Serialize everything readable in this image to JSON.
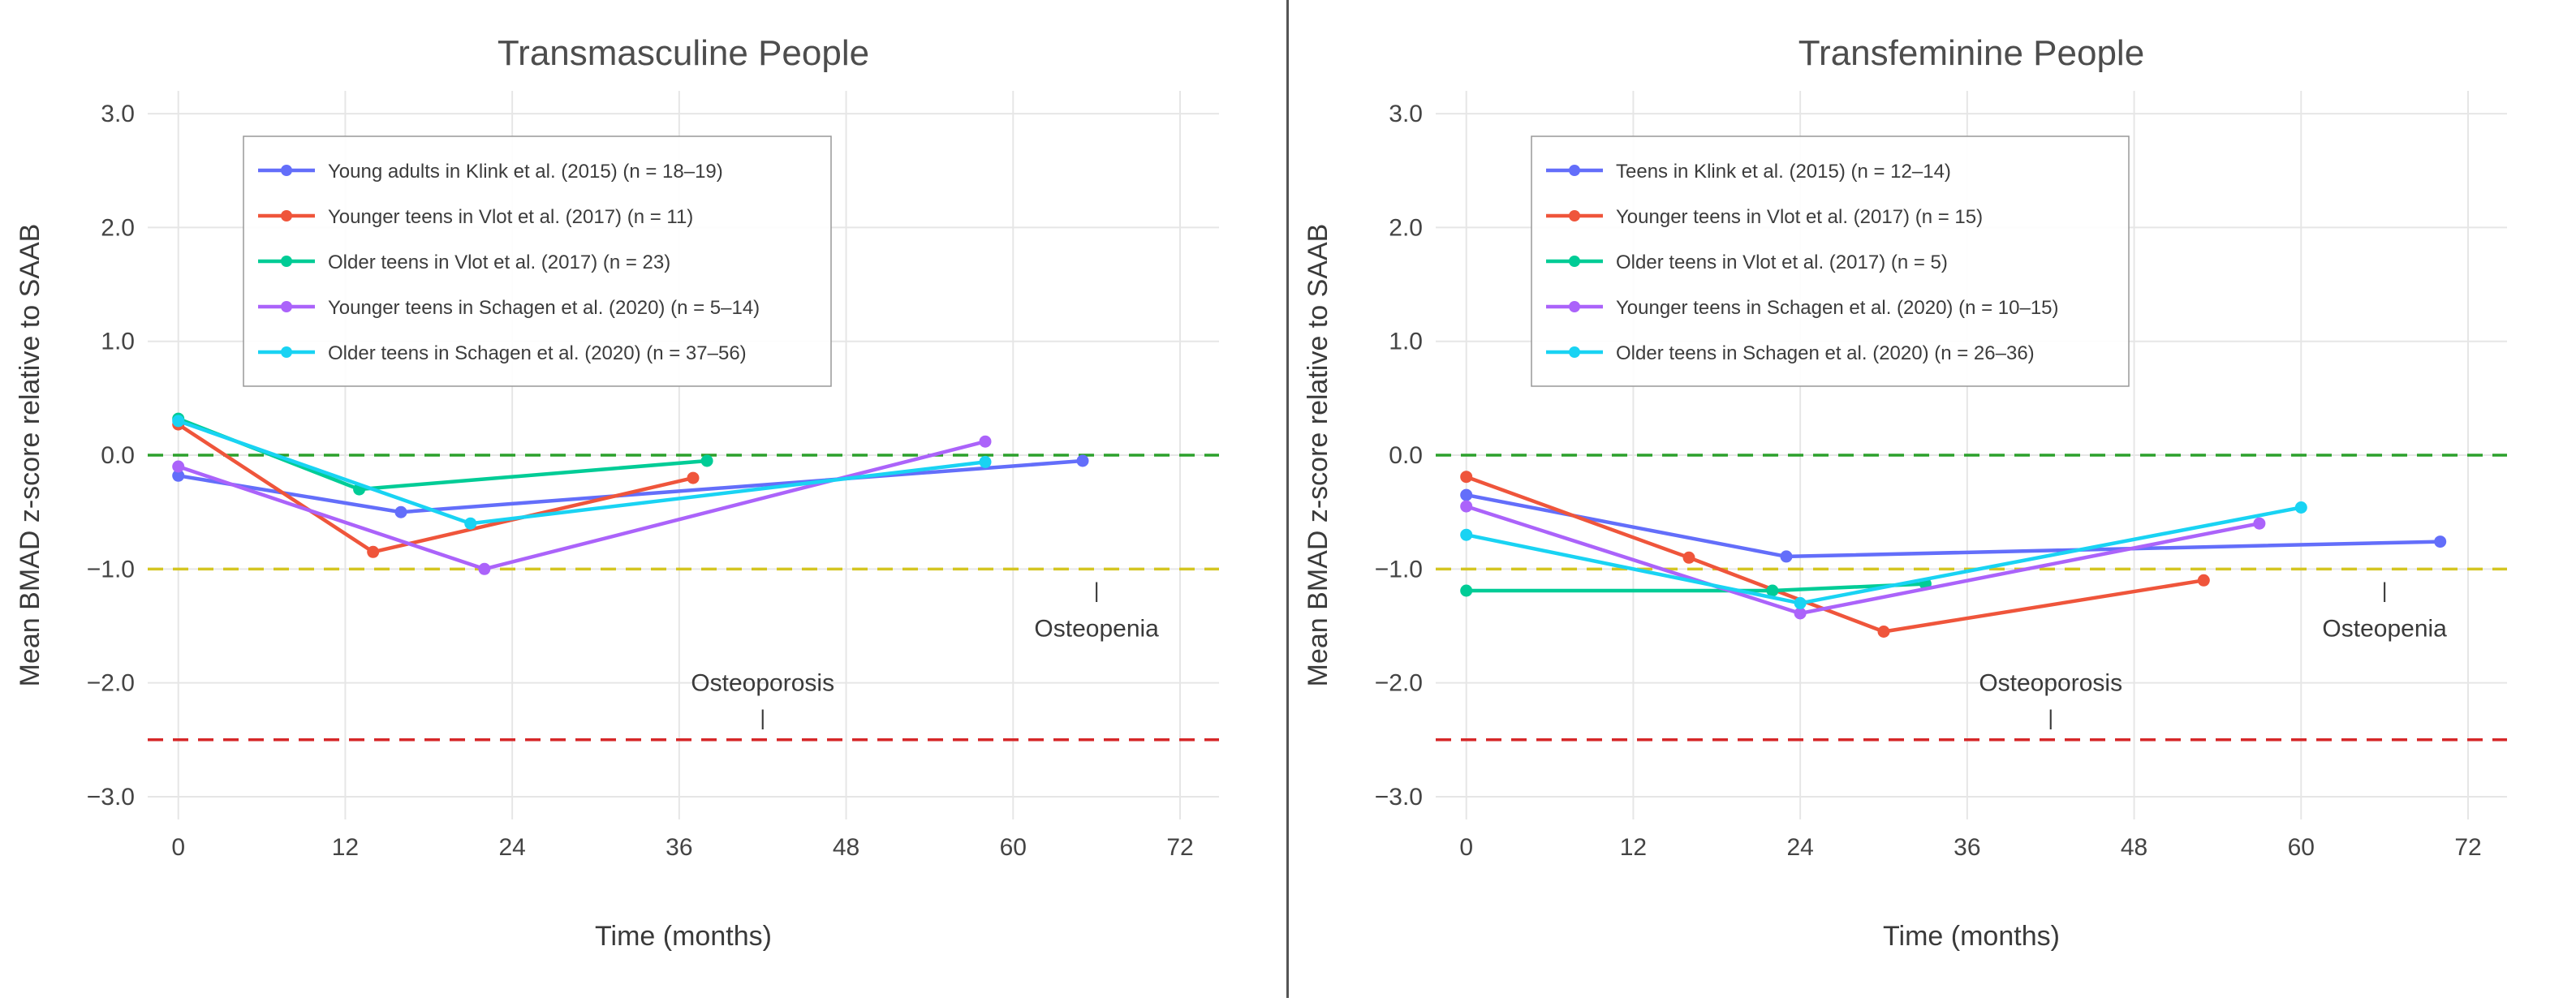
{
  "page": {
    "background": "#ffffff",
    "divider_color": "#555555"
  },
  "theme": {
    "grid_color": "#e6e6e6",
    "tick_color": "#444444",
    "title_color": "#4d4d4d",
    "axis_label_color": "#3a3a3a",
    "annotation_color": "#3a3a3a",
    "legend_border_color": "#999999",
    "legend_text_color": "#3c3c3c"
  },
  "chart_data": [
    {
      "type": "line",
      "title": "Transmasculine People",
      "xlabel": "Time (months)",
      "ylabel": "Mean BMAD z-score relative to SAAB",
      "xlim": [
        -2.2,
        74.8
      ],
      "ylim": [
        -3.2,
        3.2
      ],
      "grid": true,
      "legend_position": "top-left",
      "x_ticks": [
        {
          "v": 0,
          "label": "0"
        },
        {
          "v": 12,
          "label": "12"
        },
        {
          "v": 24,
          "label": "24"
        },
        {
          "v": 36,
          "label": "36"
        },
        {
          "v": 48,
          "label": "48"
        },
        {
          "v": 60,
          "label": "60"
        },
        {
          "v": 72,
          "label": "72"
        }
      ],
      "y_ticks": [
        {
          "v": 3,
          "label": "3.0"
        },
        {
          "v": 2,
          "label": "2.0"
        },
        {
          "v": 1,
          "label": "1.0"
        },
        {
          "v": 0,
          "label": "0.0"
        },
        {
          "v": -1,
          "label": "−1.0"
        },
        {
          "v": -2,
          "label": "−2.0"
        },
        {
          "v": -3,
          "label": "−3.0"
        }
      ],
      "reference_lines": [
        {
          "y": 0,
          "color": "#2ca02c",
          "style": "dashed",
          "meaning": "normal"
        },
        {
          "y": -1,
          "color": "#d4c521",
          "style": "dashed",
          "meaning": "osteopenia-threshold"
        },
        {
          "y": -2.5,
          "color": "#d62728",
          "style": "dashed",
          "meaning": "osteoporosis-threshold"
        }
      ],
      "series": [
        {
          "name": "Young adults in Klink et al. (2015) (n = 18–19)",
          "color": "#636efa",
          "points": [
            [
              0,
              -0.18
            ],
            [
              16,
              -0.5
            ],
            [
              65,
              -0.05
            ]
          ]
        },
        {
          "name": "Younger teens in Vlot et al. (2017) (n = 11)",
          "color": "#ef553b",
          "points": [
            [
              0,
              0.27
            ],
            [
              14,
              -0.85
            ],
            [
              37,
              -0.2
            ]
          ]
        },
        {
          "name": "Older teens in Vlot et al. (2017) (n = 23)",
          "color": "#00cc96",
          "points": [
            [
              0,
              0.32
            ],
            [
              13,
              -0.3
            ],
            [
              38,
              -0.05
            ]
          ]
        },
        {
          "name": "Younger teens in Schagen et al. (2020) (n = 5–14)",
          "color": "#ab63fa",
          "points": [
            [
              0,
              -0.1
            ],
            [
              22,
              -1.0
            ],
            [
              58,
              0.12
            ]
          ]
        },
        {
          "name": "Older teens in Schagen et al. (2020) (n = 37–56)",
          "color": "#19d3f3",
          "points": [
            [
              0,
              0.3
            ],
            [
              21,
              -0.6
            ],
            [
              58,
              -0.06
            ]
          ]
        }
      ],
      "annotations": [
        {
          "text": "Osteoporosis",
          "x": 42,
          "y": -2.0
        },
        {
          "text": "|",
          "x": 42,
          "y": -2.3
        },
        {
          "text": "Osteopenia",
          "x": 66,
          "y": -1.52
        },
        {
          "text": "|",
          "x": 66,
          "y": -1.18
        }
      ]
    },
    {
      "type": "line",
      "title": "Transfeminine People",
      "xlabel": "Time (months)",
      "ylabel": "Mean BMAD z-score relative to SAAB",
      "xlim": [
        -2.2,
        74.8
      ],
      "ylim": [
        -3.2,
        3.2
      ],
      "grid": true,
      "legend_position": "top-left",
      "x_ticks": [
        {
          "v": 0,
          "label": "0"
        },
        {
          "v": 12,
          "label": "12"
        },
        {
          "v": 24,
          "label": "24"
        },
        {
          "v": 36,
          "label": "36"
        },
        {
          "v": 48,
          "label": "48"
        },
        {
          "v": 60,
          "label": "60"
        },
        {
          "v": 72,
          "label": "72"
        }
      ],
      "y_ticks": [
        {
          "v": 3,
          "label": "3.0"
        },
        {
          "v": 2,
          "label": "2.0"
        },
        {
          "v": 1,
          "label": "1.0"
        },
        {
          "v": 0,
          "label": "0.0"
        },
        {
          "v": -1,
          "label": "−1.0"
        },
        {
          "v": -2,
          "label": "−2.0"
        },
        {
          "v": -3,
          "label": "−3.0"
        }
      ],
      "reference_lines": [
        {
          "y": 0,
          "color": "#2ca02c",
          "style": "dashed",
          "meaning": "normal"
        },
        {
          "y": -1,
          "color": "#d4c521",
          "style": "dashed",
          "meaning": "osteopenia-threshold"
        },
        {
          "y": -2.5,
          "color": "#d62728",
          "style": "dashed",
          "meaning": "osteoporosis-threshold"
        }
      ],
      "series": [
        {
          "name": "Teens in Klink et al. (2015) (n = 12–14)",
          "color": "#636efa",
          "points": [
            [
              0,
              -0.35
            ],
            [
              23,
              -0.89
            ],
            [
              70,
              -0.76
            ]
          ]
        },
        {
          "name": "Younger teens in Vlot et al. (2017) (n = 15)",
          "color": "#ef553b",
          "points": [
            [
              0,
              -0.19
            ],
            [
              16,
              -0.9
            ],
            [
              30,
              -1.55
            ],
            [
              53,
              -1.1
            ]
          ]
        },
        {
          "name": "Older teens in Vlot et al. (2017) (n = 5)",
          "color": "#00cc96",
          "points": [
            [
              0,
              -1.19
            ],
            [
              22,
              -1.19
            ],
            [
              33,
              -1.13
            ]
          ]
        },
        {
          "name": "Younger teens in Schagen et al. (2020) (n = 10–15)",
          "color": "#ab63fa",
          "points": [
            [
              0,
              -0.45
            ],
            [
              24,
              -1.39
            ],
            [
              57,
              -0.6
            ]
          ]
        },
        {
          "name": "Older teens in Schagen et al. (2020) (n = 26–36)",
          "color": "#19d3f3",
          "points": [
            [
              0,
              -0.7
            ],
            [
              24,
              -1.3
            ],
            [
              60,
              -0.46
            ]
          ]
        }
      ],
      "annotations": [
        {
          "text": "Osteoporosis",
          "x": 42,
          "y": -2.0
        },
        {
          "text": "|",
          "x": 42,
          "y": -2.3
        },
        {
          "text": "Osteopenia",
          "x": 66,
          "y": -1.52
        },
        {
          "text": "|",
          "x": 66,
          "y": -1.18
        }
      ]
    }
  ]
}
